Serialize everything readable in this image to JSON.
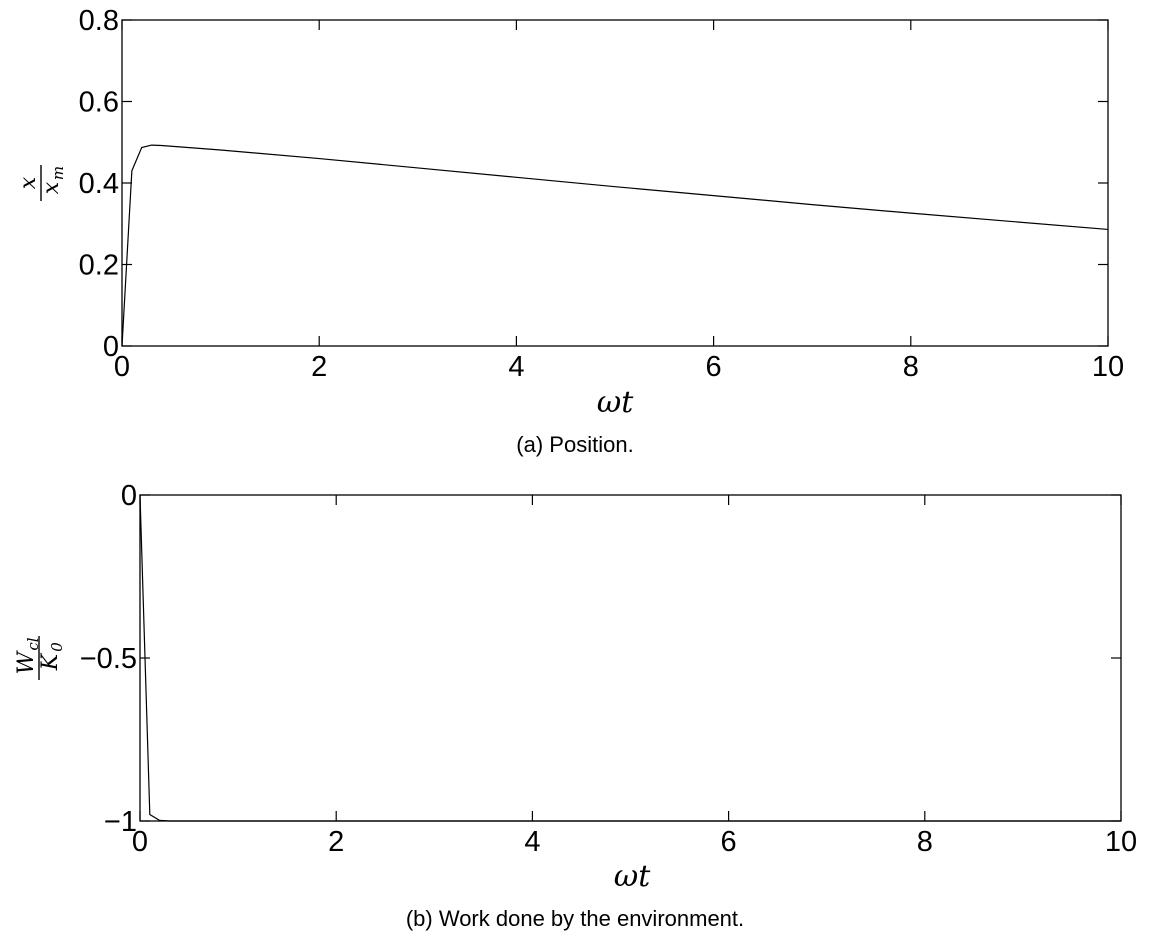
{
  "chart_data": [
    {
      "type": "line",
      "caption": "(a) Position.",
      "xlabel": "ωt",
      "ylabel_num": "x",
      "ylabel_den": "x",
      "ylabel_den_sub": "m",
      "xlim": [
        0,
        10
      ],
      "ylim": [
        0,
        0.8
      ],
      "xticks": [
        0,
        2,
        4,
        6,
        8,
        10
      ],
      "xtick_labels": [
        "0",
        "2",
        "4",
        "6",
        "8",
        "10"
      ],
      "yticks": [
        0,
        0.2,
        0.4,
        0.6,
        0.8
      ],
      "ytick_labels": [
        "0",
        "0.2",
        "0.4",
        "0.6",
        "0.8"
      ],
      "grid": false,
      "series": [
        {
          "x": [
            0,
            0.1,
            0.2,
            0.3,
            0.4,
            1,
            2,
            3,
            4,
            5,
            6,
            7,
            8,
            9,
            10
          ],
          "y": [
            0,
            0.43,
            0.487,
            0.493,
            0.492,
            0.481,
            0.46,
            0.437,
            0.414,
            0.391,
            0.369,
            0.347,
            0.326,
            0.306,
            0.286
          ]
        }
      ]
    },
    {
      "type": "line",
      "caption": "(b) Work done by the environment.",
      "xlabel": "ωt",
      "ylabel_num": "W",
      "ylabel_num_sub": "cl",
      "ylabel_den": "K",
      "ylabel_den_sub": "0",
      "xlim": [
        0,
        10
      ],
      "ylim": [
        -1,
        0
      ],
      "xticks": [
        0,
        2,
        4,
        6,
        8,
        10
      ],
      "xtick_labels": [
        "0",
        "2",
        "4",
        "6",
        "8",
        "10"
      ],
      "yticks": [
        -1,
        -0.5,
        0
      ],
      "ytick_labels": [
        "−1",
        "−0.5",
        "0"
      ],
      "grid": false,
      "series": [
        {
          "x": [
            0,
            0.1,
            0.2,
            0.3,
            1,
            10
          ],
          "y": [
            0,
            -0.98,
            -0.998,
            -1,
            -1,
            -1
          ]
        }
      ]
    }
  ]
}
